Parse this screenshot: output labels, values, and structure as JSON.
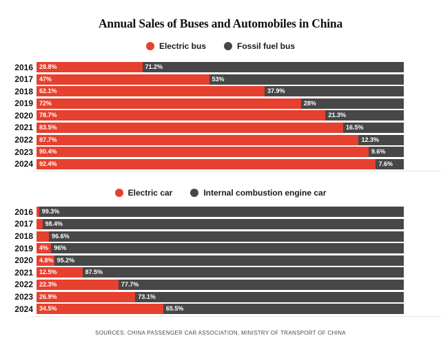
{
  "title": "Annual Sales of Buses and Automobiles in China",
  "source": "SOURCES: CHINA PASSENGER CAR ASSOCIATION, MINISTRY OF TRANSPORT OF CHINA",
  "colors": {
    "electric": "#e6402e",
    "fossil": "#474747"
  },
  "chart_data": [
    {
      "type": "bar",
      "orientation": "horizontal",
      "stacked": true,
      "unit": "%",
      "legend_position": "top",
      "categories": [
        "2016",
        "2017",
        "2018",
        "2019",
        "2020",
        "2021",
        "2022",
        "2023",
        "2024"
      ],
      "series": [
        {
          "name": "Electric bus",
          "color_key": "electric",
          "values": [
            28.8,
            47,
            62.1,
            72,
            78.7,
            83.5,
            87.7,
            90.4,
            92.4
          ],
          "labels": [
            "28.8%",
            "47%",
            "62.1%",
            "72%",
            "78.7%",
            "83.5%",
            "87.7%",
            "90.4%",
            "92.4%"
          ]
        },
        {
          "name": "Fossil fuel bus",
          "color_key": "fossil",
          "values": [
            71.2,
            53,
            37.9,
            28,
            21.3,
            16.5,
            12.3,
            9.6,
            7.6
          ],
          "labels": [
            "71.2%",
            "53%",
            "37.9%",
            "28%",
            "21.3%",
            "16.5%",
            "12.3%",
            "9.6%",
            "7.6%"
          ]
        }
      ]
    },
    {
      "type": "bar",
      "orientation": "horizontal",
      "stacked": true,
      "unit": "%",
      "legend_position": "top",
      "categories": [
        "2016",
        "2017",
        "2018",
        "2019",
        "2020",
        "2021",
        "2022",
        "2023",
        "2024"
      ],
      "series": [
        {
          "name": "Electric car",
          "color_key": "electric",
          "values": [
            0.7,
            1.6,
            3.4,
            4,
            4.8,
            12.5,
            22.3,
            26.9,
            34.5
          ],
          "labels": [
            "",
            "",
            "",
            "4%",
            "4.8%",
            "12.5%",
            "22.3%",
            "26.9%",
            "34.5%"
          ]
        },
        {
          "name": "Internal combustion engine car",
          "color_key": "fossil",
          "values": [
            99.3,
            98.4,
            96.6,
            96,
            95.2,
            87.5,
            77.7,
            73.1,
            65.5
          ],
          "labels": [
            "99.3%",
            "98.4%",
            "96.6%",
            "96%",
            "95.2%",
            "87.5%",
            "77.7%",
            "73.1%",
            "65.5%"
          ]
        }
      ]
    }
  ]
}
